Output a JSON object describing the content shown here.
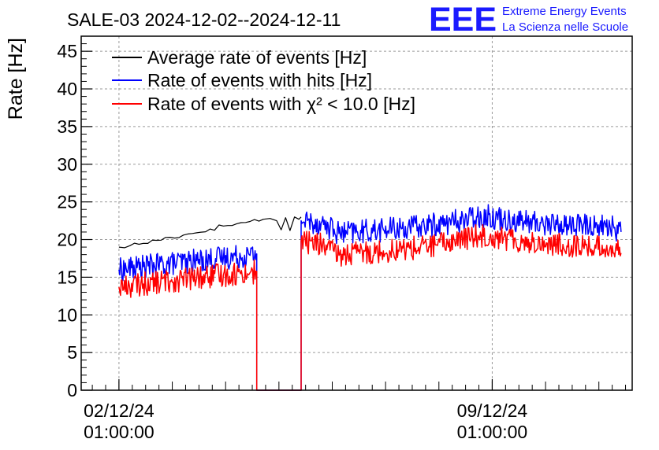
{
  "logo": {
    "text": "EEE",
    "line1": "Extreme Energy Events",
    "line2": "La Scienza nelle Scuole",
    "color": "#1a1aff"
  },
  "chart_data": {
    "type": "line",
    "title": "SALE-03 2024-12-02--2024-12-11",
    "ylabel": "Rate [Hz]",
    "xlabel": "",
    "ylim": [
      0,
      47
    ],
    "xlim": [
      "2024-12-01 08:00",
      "2024-12-11 16:00"
    ],
    "yticks": [
      0,
      5,
      10,
      15,
      20,
      25,
      30,
      35,
      40,
      45
    ],
    "xticks": [
      {
        "x": "2024-12-02 01:00:00",
        "line1": "02/12/24",
        "line2": "01:00:00"
      },
      {
        "x": "2024-12-09 01:00:00",
        "line1": "09/12/24",
        "line2": "01:00:00"
      }
    ],
    "grid": true,
    "legend_position": "top-left",
    "series": [
      {
        "name": "Average rate of events [Hz]",
        "color": "#000000",
        "points": [
          [
            "2024-12-02 01:00",
            19.0
          ],
          [
            "2024-12-02 06:00",
            19.2
          ],
          [
            "2024-12-02 12:00",
            19.5
          ],
          [
            "2024-12-02 18:00",
            19.9
          ],
          [
            "2024-12-03 00:00",
            20.3
          ],
          [
            "2024-12-03 06:00",
            20.6
          ],
          [
            "2024-12-03 12:00",
            20.9
          ],
          [
            "2024-12-03 18:00",
            21.4
          ],
          [
            "2024-12-04 00:00",
            21.8
          ],
          [
            "2024-12-04 06:00",
            22.1
          ],
          [
            "2024-12-04 12:00",
            22.4
          ],
          [
            "2024-12-04 18:00",
            22.7
          ],
          [
            "2024-12-04 21:00",
            22.8
          ],
          [
            "2024-12-05 00:00",
            22.5
          ],
          [
            "2024-12-05 02:00",
            21.3
          ],
          [
            "2024-12-05 04:00",
            22.9
          ],
          [
            "2024-12-05 06:00",
            21.2
          ],
          [
            "2024-12-05 08:00",
            23.0
          ],
          [
            "2024-12-05 10:00",
            22.7
          ],
          [
            "2024-12-05 11:00",
            23.0
          ]
        ]
      },
      {
        "name": "Rate of events with hits [Hz]",
        "color": "#0000ff",
        "points": [
          [
            "2024-12-02 01:00",
            16.0
          ],
          [
            "2024-12-02 12:00",
            16.4
          ],
          [
            "2024-12-03 00:00",
            16.8
          ],
          [
            "2024-12-03 12:00",
            17.2
          ],
          [
            "2024-12-04 00:00",
            17.6
          ],
          [
            "2024-12-04 12:00",
            17.9
          ],
          [
            "2024-12-04 15:00",
            18.1
          ],
          [
            "2024-12-04 15:00",
            0
          ],
          [
            "2024-12-05 11:00",
            0
          ],
          [
            "2024-12-05 11:00",
            22.5
          ],
          [
            "2024-12-05 20:00",
            22.2
          ],
          [
            "2024-12-06 00:00",
            21.6
          ],
          [
            "2024-12-06 04:00",
            20.8
          ],
          [
            "2024-12-06 12:00",
            21.0
          ],
          [
            "2024-12-07 00:00",
            21.3
          ],
          [
            "2024-12-07 12:00",
            21.6
          ],
          [
            "2024-12-08 00:00",
            22.0
          ],
          [
            "2024-12-08 12:00",
            22.6
          ],
          [
            "2024-12-08 20:00",
            23.2
          ],
          [
            "2024-12-09 06:00",
            22.8
          ],
          [
            "2024-12-09 18:00",
            22.3
          ],
          [
            "2024-12-10 06:00",
            22.0
          ],
          [
            "2024-12-10 18:00",
            21.9
          ],
          [
            "2024-12-11 06:00",
            21.8
          ],
          [
            "2024-12-11 11:00",
            21.0
          ]
        ]
      },
      {
        "name": "Rate of events with χ² < 10.0 [Hz]",
        "color": "#ff0000",
        "points": [
          [
            "2024-12-02 01:00",
            13.7
          ],
          [
            "2024-12-02 12:00",
            14.1
          ],
          [
            "2024-12-03 00:00",
            14.5
          ],
          [
            "2024-12-03 12:00",
            14.9
          ],
          [
            "2024-12-04 00:00",
            15.3
          ],
          [
            "2024-12-04 12:00",
            15.6
          ],
          [
            "2024-12-04 15:00",
            15.8
          ],
          [
            "2024-12-04 15:00",
            0
          ],
          [
            "2024-12-05 11:00",
            0
          ],
          [
            "2024-12-05 11:00",
            19.8
          ],
          [
            "2024-12-05 20:00",
            19.4
          ],
          [
            "2024-12-06 00:00",
            18.6
          ],
          [
            "2024-12-06 04:00",
            17.9
          ],
          [
            "2024-12-06 12:00",
            18.2
          ],
          [
            "2024-12-07 00:00",
            18.5
          ],
          [
            "2024-12-07 12:00",
            18.8
          ],
          [
            "2024-12-08 00:00",
            19.3
          ],
          [
            "2024-12-08 12:00",
            20.1
          ],
          [
            "2024-12-08 20:00",
            20.6
          ],
          [
            "2024-12-09 06:00",
            20.2
          ],
          [
            "2024-12-09 18:00",
            19.6
          ],
          [
            "2024-12-10 06:00",
            19.3
          ],
          [
            "2024-12-10 18:00",
            19.1
          ],
          [
            "2024-12-11 06:00",
            18.9
          ],
          [
            "2024-12-11 11:00",
            18.2
          ]
        ]
      }
    ]
  }
}
